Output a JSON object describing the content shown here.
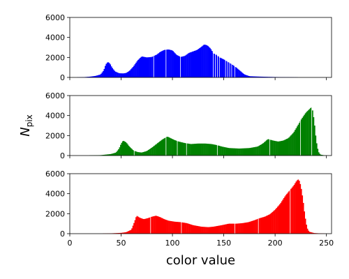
{
  "chart_data": {
    "type": "histogram-stack",
    "xlabel": "color value",
    "ylabel_main": "N",
    "ylabel_sub": "pix",
    "xlim": [
      0,
      255
    ],
    "ylim": [
      0,
      6000
    ],
    "x_ticks": [
      "0",
      "50",
      "100",
      "150",
      "200",
      "250"
    ],
    "y_ticks": [
      "0",
      "2000",
      "4000",
      "6000"
    ],
    "grid": false,
    "panels": [
      {
        "color": "#0000ff",
        "points": [
          [
            0,
            0
          ],
          [
            10,
            20
          ],
          [
            15,
            40
          ],
          [
            20,
            80
          ],
          [
            25,
            150
          ],
          [
            30,
            300
          ],
          [
            33,
            700
          ],
          [
            35,
            1300
          ],
          [
            37,
            1550
          ],
          [
            39,
            1400
          ],
          [
            41,
            1000
          ],
          [
            44,
            600
          ],
          [
            48,
            420
          ],
          [
            52,
            400
          ],
          [
            55,
            450
          ],
          [
            58,
            650
          ],
          [
            62,
            1100
          ],
          [
            66,
            1700
          ],
          [
            70,
            2100
          ],
          [
            75,
            2000
          ],
          [
            80,
            2050
          ],
          [
            85,
            2300
          ],
          [
            88,
            2550
          ],
          [
            92,
            2750
          ],
          [
            96,
            2800
          ],
          [
            100,
            2700
          ],
          [
            104,
            2250
          ],
          [
            108,
            2050
          ],
          [
            112,
            2150
          ],
          [
            116,
            2450
          ],
          [
            120,
            2600
          ],
          [
            124,
            2750
          ],
          [
            128,
            3050
          ],
          [
            131,
            3300
          ],
          [
            134,
            3200
          ],
          [
            137,
            2900
          ],
          [
            140,
            2400
          ],
          [
            143,
            2250
          ],
          [
            146,
            2000
          ],
          [
            150,
            1800
          ],
          [
            154,
            1550
          ],
          [
            158,
            1300
          ],
          [
            162,
            1000
          ],
          [
            166,
            650
          ],
          [
            170,
            300
          ],
          [
            175,
            120
          ],
          [
            185,
            80
          ],
          [
            200,
            40
          ],
          [
            220,
            15
          ],
          [
            240,
            5
          ],
          [
            255,
            0
          ]
        ],
        "gaps": [
          81,
          93,
          107,
          139,
          141,
          143,
          145,
          151,
          153,
          155,
          157,
          160
        ]
      },
      {
        "color": "#008000",
        "points": [
          [
            0,
            0
          ],
          [
            20,
            15
          ],
          [
            30,
            40
          ],
          [
            40,
            150
          ],
          [
            45,
            300
          ],
          [
            48,
            700
          ],
          [
            50,
            1200
          ],
          [
            52,
            1500
          ],
          [
            55,
            1300
          ],
          [
            58,
            900
          ],
          [
            62,
            500
          ],
          [
            66,
            350
          ],
          [
            70,
            300
          ],
          [
            75,
            450
          ],
          [
            80,
            800
          ],
          [
            85,
            1200
          ],
          [
            90,
            1600
          ],
          [
            95,
            1900
          ],
          [
            98,
            1750
          ],
          [
            102,
            1550
          ],
          [
            106,
            1400
          ],
          [
            112,
            1250
          ],
          [
            118,
            1150
          ],
          [
            125,
            1200
          ],
          [
            132,
            1200
          ],
          [
            138,
            1150
          ],
          [
            143,
            1050
          ],
          [
            148,
            900
          ],
          [
            155,
            750
          ],
          [
            165,
            700
          ],
          [
            175,
            750
          ],
          [
            183,
            900
          ],
          [
            188,
            1200
          ],
          [
            193,
            1650
          ],
          [
            198,
            1500
          ],
          [
            203,
            1400
          ],
          [
            208,
            1500
          ],
          [
            213,
            1750
          ],
          [
            218,
            2300
          ],
          [
            222,
            3000
          ],
          [
            226,
            3700
          ],
          [
            230,
            4300
          ],
          [
            233,
            4600
          ],
          [
            235,
            4800
          ],
          [
            236,
            4850
          ],
          [
            238,
            3500
          ],
          [
            240,
            1500
          ],
          [
            242,
            400
          ],
          [
            244,
            100
          ],
          [
            248,
            20
          ],
          [
            255,
            0
          ]
        ],
        "gaps": [
          62,
          93,
          104,
          113,
          143,
          194,
          224,
          235
        ]
      },
      {
        "color": "#ff0000",
        "points": [
          [
            0,
            0
          ],
          [
            30,
            10
          ],
          [
            40,
            30
          ],
          [
            50,
            80
          ],
          [
            55,
            150
          ],
          [
            60,
            400
          ],
          [
            63,
            1200
          ],
          [
            65,
            1800
          ],
          [
            68,
            1600
          ],
          [
            72,
            1450
          ],
          [
            76,
            1550
          ],
          [
            80,
            1700
          ],
          [
            84,
            1800
          ],
          [
            88,
            1650
          ],
          [
            92,
            1450
          ],
          [
            96,
            1300
          ],
          [
            102,
            1200
          ],
          [
            108,
            1150
          ],
          [
            114,
            1050
          ],
          [
            120,
            850
          ],
          [
            128,
            700
          ],
          [
            135,
            650
          ],
          [
            140,
            700
          ],
          [
            148,
            850
          ],
          [
            155,
            1000
          ],
          [
            162,
            1000
          ],
          [
            168,
            1050
          ],
          [
            174,
            1150
          ],
          [
            180,
            1350
          ],
          [
            185,
            1550
          ],
          [
            190,
            1700
          ],
          [
            195,
            1950
          ],
          [
            200,
            2400
          ],
          [
            205,
            3000
          ],
          [
            210,
            3800
          ],
          [
            214,
            4300
          ],
          [
            218,
            4800
          ],
          [
            221,
            5300
          ],
          [
            223,
            5450
          ],
          [
            225,
            4800
          ],
          [
            227,
            3500
          ],
          [
            229,
            1800
          ],
          [
            231,
            600
          ],
          [
            233,
            200
          ],
          [
            238,
            60
          ],
          [
            245,
            20
          ],
          [
            255,
            0
          ]
        ],
        "gaps": [
          78,
          108,
          160,
          183,
          214
        ]
      }
    ]
  }
}
